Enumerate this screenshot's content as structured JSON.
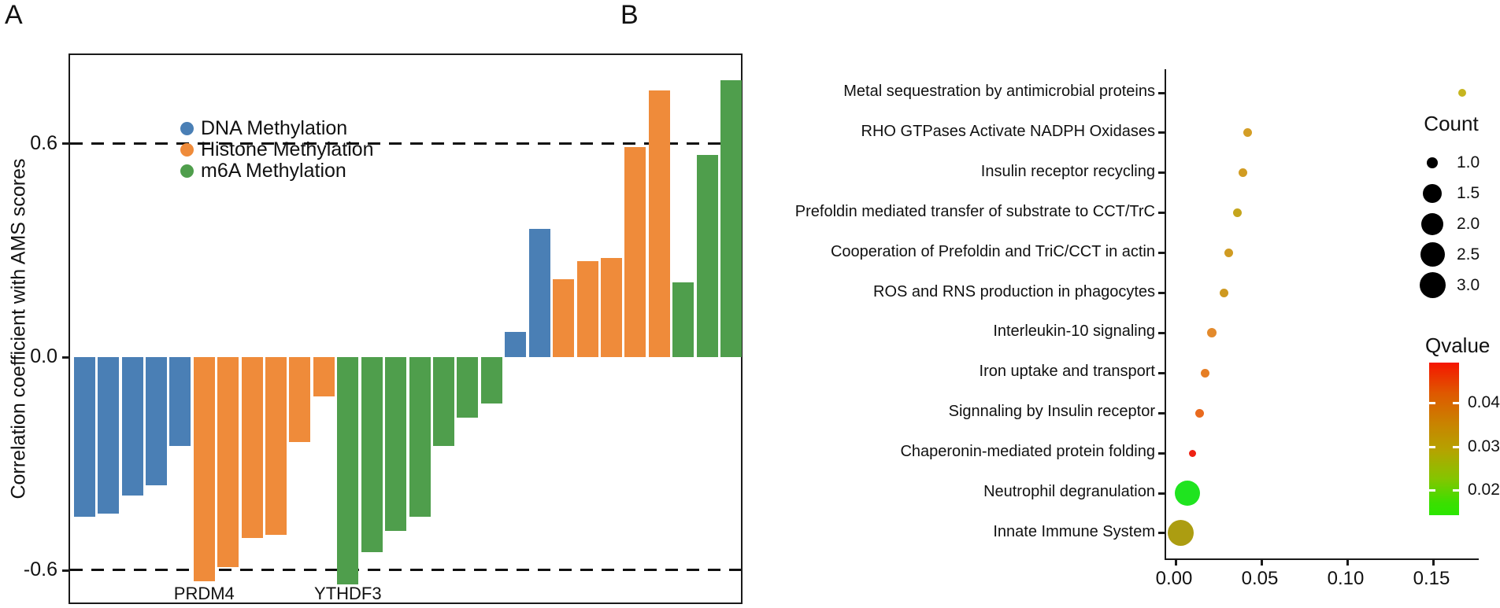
{
  "figure": {
    "panel_a_label": "A",
    "panel_b_label": "B"
  },
  "panel_a": {
    "y_axis_label": "Correlation coefficient with AMS scores",
    "y_ticks": [
      {
        "label": "0.6",
        "value": 0.6
      },
      {
        "label": "0.0",
        "value": 0.0
      },
      {
        "label": "-0.6",
        "value": -0.6
      }
    ],
    "legend": [
      {
        "label": "DNA Methylation",
        "color": "#4a7fb5"
      },
      {
        "label": "Histone Methylation",
        "color": "#ef8b3a"
      },
      {
        "label": "m6A Methylation",
        "color": "#4f9e4c"
      }
    ]
  },
  "chart_data": [
    {
      "type": "bar",
      "title": "Correlation of methylation regulators with AMS scores",
      "ylabel": "Correlation coefficient with AMS scores",
      "ylim": [
        -0.71,
        0.82
      ],
      "reference_lines": [
        0.6,
        -0.6
      ],
      "grid": false,
      "legend_position": "top-left",
      "series_colors": {
        "DNA Methylation": "#4a7fb5",
        "Histone Methylation": "#ef8b3a",
        "m6A Methylation": "#4f9e4c"
      },
      "bars": [
        {
          "group": "DNA Methylation",
          "value": -0.45
        },
        {
          "group": "DNA Methylation",
          "value": -0.44
        },
        {
          "group": "DNA Methylation",
          "value": -0.39
        },
        {
          "group": "DNA Methylation",
          "value": -0.36
        },
        {
          "group": "DNA Methylation",
          "value": -0.25
        },
        {
          "group": "Histone Methylation",
          "value": -0.63
        },
        {
          "group": "Histone Methylation",
          "value": -0.59
        },
        {
          "group": "Histone Methylation",
          "value": -0.51
        },
        {
          "group": "Histone Methylation",
          "value": -0.5
        },
        {
          "group": "Histone Methylation",
          "value": -0.24
        },
        {
          "group": "Histone Methylation",
          "value": -0.11
        },
        {
          "group": "m6A Methylation",
          "value": -0.64
        },
        {
          "group": "m6A Methylation",
          "value": -0.55
        },
        {
          "group": "m6A Methylation",
          "value": -0.49
        },
        {
          "group": "m6A Methylation",
          "value": -0.45
        },
        {
          "group": "m6A Methylation",
          "value": -0.25
        },
        {
          "group": "m6A Methylation",
          "value": -0.17
        },
        {
          "group": "m6A Methylation",
          "value": -0.13
        },
        {
          "group": "DNA Methylation",
          "value": 0.07
        },
        {
          "group": "DNA Methylation",
          "value": 0.36
        },
        {
          "group": "Histone Methylation",
          "value": 0.22
        },
        {
          "group": "Histone Methylation",
          "value": 0.27
        },
        {
          "group": "Histone Methylation",
          "value": 0.28
        },
        {
          "group": "Histone Methylation",
          "value": 0.59
        },
        {
          "group": "Histone Methylation",
          "value": 0.75
        },
        {
          "group": "m6A Methylation",
          "value": 0.21
        },
        {
          "group": "m6A Methylation",
          "value": 0.57
        },
        {
          "group": "m6A Methylation",
          "value": 0.78
        }
      ],
      "x_annotations": [
        {
          "label": "PRDM4",
          "bar_index": 5
        },
        {
          "label": "YTHDF3",
          "bar_index": 11
        }
      ]
    },
    {
      "type": "scatter",
      "x_ticks": [
        {
          "label": "0.00",
          "value": 0.0
        },
        {
          "label": "0.05",
          "value": 0.05
        },
        {
          "label": "0.10",
          "value": 0.1
        },
        {
          "label": "0.15",
          "value": 0.15
        }
      ],
      "xlim": [
        -0.005,
        0.178
      ],
      "size_legend": {
        "title": "Count",
        "labels": [
          "1.0",
          "1.5",
          "2.0",
          "2.5",
          "3.0"
        ],
        "diameters": [
          14,
          24,
          28,
          31,
          33
        ]
      },
      "color_legend": {
        "title": "Qvalue",
        "ticks": [
          "0.04",
          "0.03",
          "0.02"
        ],
        "high_color": "#f51500",
        "low_color": "#2be600"
      },
      "points": [
        {
          "pathway": "Metal sequestration by antimicrobial proteins",
          "x": 0.167,
          "count": 1,
          "qvalue": 0.027,
          "color": "#c6b51f",
          "r": 5
        },
        {
          "pathway": "RHO GTPases Activate NADPH Oxidases",
          "x": 0.042,
          "count": 1,
          "qvalue": 0.032,
          "color": "#d49e26",
          "r": 5.5
        },
        {
          "pathway": "Insulin receptor recycling",
          "x": 0.039,
          "count": 1,
          "qvalue": 0.032,
          "color": "#d19c22",
          "r": 5.5
        },
        {
          "pathway": "Prefoldin mediated transfer of substrate to CCT/TrC",
          "x": 0.036,
          "count": 1,
          "qvalue": 0.03,
          "color": "#c5a51d",
          "r": 5.5
        },
        {
          "pathway": "Cooperation of Prefoldin and TriC/CCT in actin",
          "x": 0.031,
          "count": 1,
          "qvalue": 0.032,
          "color": "#d09b22",
          "r": 5.5
        },
        {
          "pathway": "ROS and RNS production in phagocytes",
          "x": 0.028,
          "count": 1,
          "qvalue": 0.032,
          "color": "#ce9920",
          "r": 5.5
        },
        {
          "pathway": "Interleukin-10 signaling",
          "x": 0.021,
          "count": 1,
          "qvalue": 0.037,
          "color": "#e38a2c",
          "r": 6
        },
        {
          "pathway": "Iron uptake and transport",
          "x": 0.017,
          "count": 1,
          "qvalue": 0.039,
          "color": "#e67e24",
          "r": 5.5
        },
        {
          "pathway": "Signnaling by Insulin receptor",
          "x": 0.014,
          "count": 1,
          "qvalue": 0.041,
          "color": "#e96a1e",
          "r": 5.5
        },
        {
          "pathway": "Chaperonin-mediated protein folding",
          "x": 0.01,
          "count": 1,
          "qvalue": 0.047,
          "color": "#ee2113",
          "r": 4.5
        },
        {
          "pathway": "Neutrophil degranulation",
          "x": 0.007,
          "count": 3,
          "qvalue": 0.016,
          "color": "#1fe41f",
          "r": 16
        },
        {
          "pathway": "Innate Immune System",
          "x": 0.003,
          "count": 3,
          "qvalue": 0.028,
          "color": "#ac9d11",
          "r": 16.5
        }
      ]
    }
  ]
}
